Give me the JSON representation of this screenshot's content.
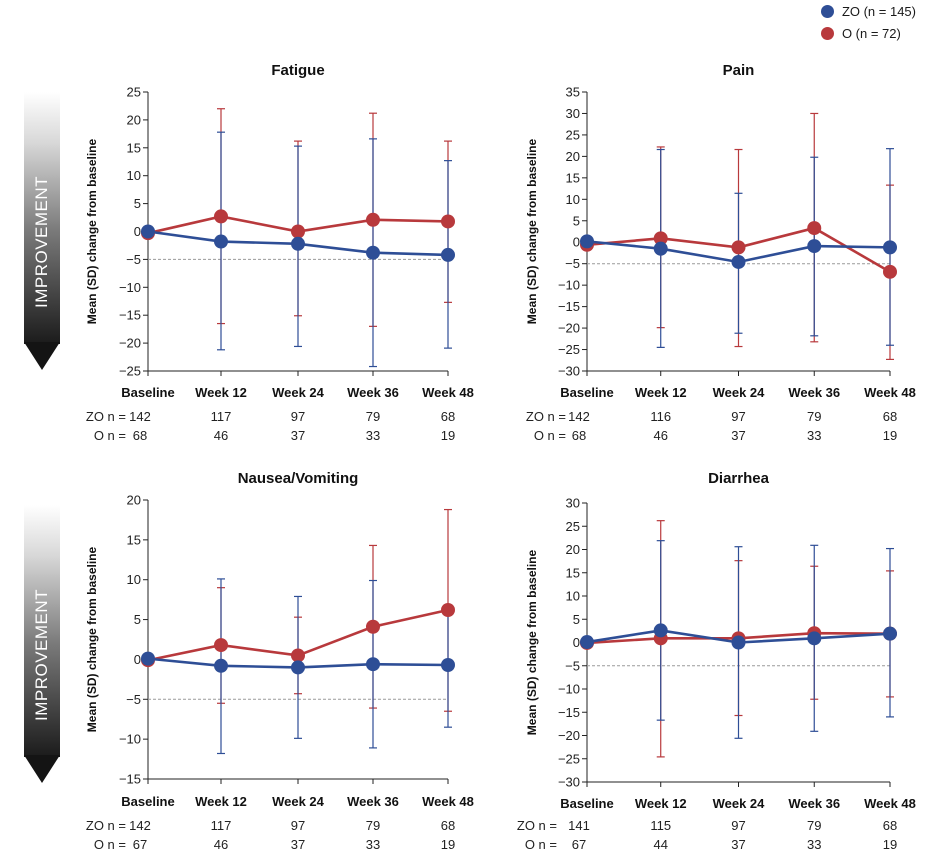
{
  "legend": [
    {
      "label": "ZO (n = 145)",
      "color": "#2e4e96"
    },
    {
      "label": "O (n = 72)",
      "color": "#b8393c"
    }
  ],
  "improvement_label": "IMPROVEMENT",
  "colors": {
    "zo": "#2e4e96",
    "o": "#b8393c",
    "reference": "#9a9a9a"
  },
  "chart_data": [
    {
      "type": "line",
      "title": "Fatigue",
      "ylabel": "Mean (SD) change from baseline",
      "categories": [
        "Baseline",
        "Week 12",
        "Week 24",
        "Week 36",
        "Week 48"
      ],
      "ylim": [
        -25,
        25
      ],
      "yticks": [
        -25,
        -20,
        -15,
        -10,
        -5,
        0,
        5,
        10,
        15,
        20,
        25
      ],
      "reference_line": -5,
      "series": [
        {
          "name": "ZO",
          "values": [
            0,
            -1.8,
            -2.2,
            -3.8,
            -4.2
          ],
          "err_upper": [
            0,
            17.8,
            15.3,
            16.6,
            12.7
          ],
          "err_lower": [
            0,
            -21.2,
            -20.6,
            -24.2,
            -20.9
          ]
        },
        {
          "name": "O",
          "values": [
            -0.3,
            2.7,
            0,
            2.1,
            1.8
          ],
          "err_upper": [
            0,
            22,
            16.2,
            21.2,
            16.2
          ],
          "err_lower": [
            0,
            -16.5,
            -15.1,
            -17.0,
            -12.7
          ]
        }
      ],
      "n_rows": [
        {
          "label": "ZO n =",
          "values": [
            "142",
            "117",
            "97",
            "79",
            "68"
          ]
        },
        {
          "label": "O n =",
          "values": [
            "68",
            "46",
            "37",
            "33",
            "19"
          ]
        }
      ]
    },
    {
      "type": "line",
      "title": "Pain",
      "ylabel": "Mean (SD) change from baseline",
      "categories": [
        "Baseline",
        "Week 12",
        "Week 24",
        "Week 36",
        "Week 48"
      ],
      "ylim": [
        -30,
        35
      ],
      "yticks": [
        -30,
        -25,
        -20,
        -15,
        -10,
        -5,
        0,
        5,
        10,
        15,
        20,
        25,
        30,
        35
      ],
      "reference_line": -5,
      "series": [
        {
          "name": "ZO",
          "values": [
            0.2,
            -1.5,
            -4.6,
            -0.9,
            -1.2
          ],
          "err_upper": [
            0,
            21.6,
            11.4,
            19.8,
            21.8
          ],
          "err_lower": [
            0,
            -24.5,
            -21.2,
            -21.8,
            -24.0
          ]
        },
        {
          "name": "O",
          "values": [
            -0.6,
            0.9,
            -1.2,
            3.3,
            -6.9
          ],
          "err_upper": [
            0,
            22.2,
            21.6,
            30.0,
            13.3
          ],
          "err_lower": [
            0,
            -19.9,
            -24.3,
            -23.2,
            -27.3
          ]
        }
      ],
      "n_rows": [
        {
          "label": "ZO n =",
          "values": [
            "142",
            "116",
            "97",
            "79",
            "68"
          ]
        },
        {
          "label": "O n =",
          "values": [
            "68",
            "46",
            "37",
            "33",
            "19"
          ]
        }
      ]
    },
    {
      "type": "line",
      "title": "Nausea/Vomiting",
      "ylabel": "Mean (SD) change from baseline",
      "categories": [
        "Baseline",
        "Week 12",
        "Week 24",
        "Week 36",
        "Week 48"
      ],
      "ylim": [
        -15,
        20
      ],
      "yticks": [
        -15,
        -10,
        -5,
        0,
        5,
        10,
        15,
        20
      ],
      "reference_line": -5,
      "series": [
        {
          "name": "ZO",
          "values": [
            0.1,
            -0.8,
            -1.0,
            -0.6,
            -0.7
          ],
          "err_upper": [
            0,
            10.1,
            7.9,
            9.9,
            6.3
          ],
          "err_lower": [
            0,
            -11.8,
            -9.9,
            -11.1,
            -8.5
          ]
        },
        {
          "name": "O",
          "values": [
            -0.1,
            1.8,
            0.5,
            4.1,
            6.2
          ],
          "err_upper": [
            0,
            9.0,
            5.3,
            14.3,
            18.8
          ],
          "err_lower": [
            0,
            -5.5,
            -4.3,
            -6.1,
            -6.5
          ]
        }
      ],
      "n_rows": [
        {
          "label": "ZO n =",
          "values": [
            "142",
            "117",
            "97",
            "79",
            "68"
          ]
        },
        {
          "label": "O n =",
          "values": [
            "67",
            "46",
            "37",
            "33",
            "19"
          ]
        }
      ]
    },
    {
      "type": "line",
      "title": "Diarrhea",
      "ylabel": "Mean (SD) change from baseline",
      "categories": [
        "Baseline",
        "Week 12",
        "Week 24",
        "Week 36",
        "Week 48"
      ],
      "ylim": [
        -30,
        30
      ],
      "yticks": [
        -30,
        -25,
        -20,
        -15,
        -10,
        -5,
        0,
        5,
        10,
        15,
        20,
        25,
        30
      ],
      "reference_line": -5,
      "series": [
        {
          "name": "ZO",
          "values": [
            0.1,
            2.6,
            0.0,
            0.9,
            1.9
          ],
          "err_upper": [
            0,
            21.9,
            20.6,
            20.9,
            20.2
          ],
          "err_lower": [
            0,
            -16.7,
            -20.6,
            -19.1,
            -16.0
          ]
        },
        {
          "name": "O",
          "values": [
            -0.1,
            0.9,
            0.9,
            2.0,
            1.9
          ],
          "err_upper": [
            0,
            26.2,
            17.6,
            16.4,
            15.4
          ],
          "err_lower": [
            0,
            -24.6,
            -15.7,
            -12.2,
            -11.7
          ]
        }
      ],
      "n_rows": [
        {
          "label": "ZO n =",
          "values": [
            "141",
            "115",
            "97",
            "79",
            "68"
          ]
        },
        {
          "label": "O n =",
          "values": [
            "67",
            "44",
            "37",
            "33",
            "19"
          ]
        }
      ]
    }
  ]
}
